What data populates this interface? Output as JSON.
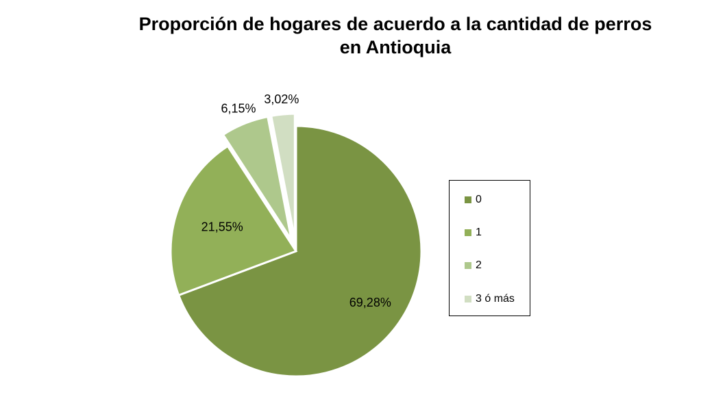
{
  "chart_data": {
    "type": "pie",
    "title": "Proporción de hogares de acuerdo a la cantidad de perros",
    "subtitle": "en Antioquia",
    "categories": [
      "0",
      "1",
      "2",
      "3 ó más"
    ],
    "values": [
      69.28,
      21.55,
      6.15,
      3.02
    ],
    "data_labels": [
      "69,28%",
      "21,55%",
      "6,15%",
      "3,02%"
    ],
    "exploded": [
      false,
      false,
      true,
      true
    ],
    "colors": [
      "#7a9443",
      "#92b058",
      "#aec88c",
      "#d1dec2"
    ],
    "legend_position": "right",
    "start_angle": "top",
    "direction": "clockwise"
  }
}
